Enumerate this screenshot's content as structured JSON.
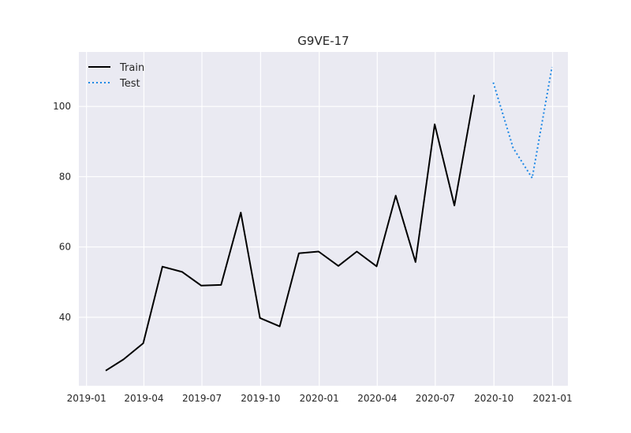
{
  "chart_data": {
    "type": "line",
    "title": "G9VE-17",
    "xlabel": "",
    "ylabel": "",
    "x_axis": "date",
    "xlim": [
      "2018-12-20",
      "2021-01-25"
    ],
    "ylim": [
      20.5,
      115.5
    ],
    "x_ticks": [
      {
        "date": "2019-01-01",
        "label": "2019-01"
      },
      {
        "date": "2019-04-01",
        "label": "2019-04"
      },
      {
        "date": "2019-07-01",
        "label": "2019-07"
      },
      {
        "date": "2019-10-01",
        "label": "2019-10"
      },
      {
        "date": "2020-01-01",
        "label": "2020-01"
      },
      {
        "date": "2020-04-01",
        "label": "2020-04"
      },
      {
        "date": "2020-07-01",
        "label": "2020-07"
      },
      {
        "date": "2020-10-01",
        "label": "2020-10"
      },
      {
        "date": "2021-01-01",
        "label": "2021-01"
      }
    ],
    "y_ticks": [
      40,
      60,
      80,
      100
    ],
    "grid": true,
    "legend_position": "top-left",
    "series": [
      {
        "name": "Train",
        "color": "#000000",
        "style": "solid",
        "points": [
          {
            "x": "2019-01-31",
            "y": 24.8
          },
          {
            "x": "2019-02-28",
            "y": 28.0
          },
          {
            "x": "2019-03-31",
            "y": 32.6
          },
          {
            "x": "2019-04-30",
            "y": 54.4
          },
          {
            "x": "2019-05-31",
            "y": 52.9
          },
          {
            "x": "2019-06-30",
            "y": 49.0
          },
          {
            "x": "2019-07-31",
            "y": 49.2
          },
          {
            "x": "2019-08-31",
            "y": 69.8
          },
          {
            "x": "2019-09-30",
            "y": 39.8
          },
          {
            "x": "2019-10-31",
            "y": 37.4
          },
          {
            "x": "2019-11-30",
            "y": 58.2
          },
          {
            "x": "2019-12-31",
            "y": 58.7
          },
          {
            "x": "2020-01-31",
            "y": 54.6
          },
          {
            "x": "2020-02-29",
            "y": 58.7
          },
          {
            "x": "2020-03-31",
            "y": 54.5
          },
          {
            "x": "2020-04-30",
            "y": 74.6
          },
          {
            "x": "2020-05-31",
            "y": 55.7
          },
          {
            "x": "2020-06-30",
            "y": 94.9
          },
          {
            "x": "2020-07-31",
            "y": 71.8
          },
          {
            "x": "2020-08-31",
            "y": 103.3
          }
        ]
      },
      {
        "name": "Test",
        "color": "#1e88e5",
        "style": "dotted",
        "points": [
          {
            "x": "2020-09-30",
            "y": 106.8
          },
          {
            "x": "2020-10-31",
            "y": 88.2
          },
          {
            "x": "2020-11-30",
            "y": 79.6
          },
          {
            "x": "2020-12-31",
            "y": 111.2
          }
        ]
      }
    ]
  }
}
